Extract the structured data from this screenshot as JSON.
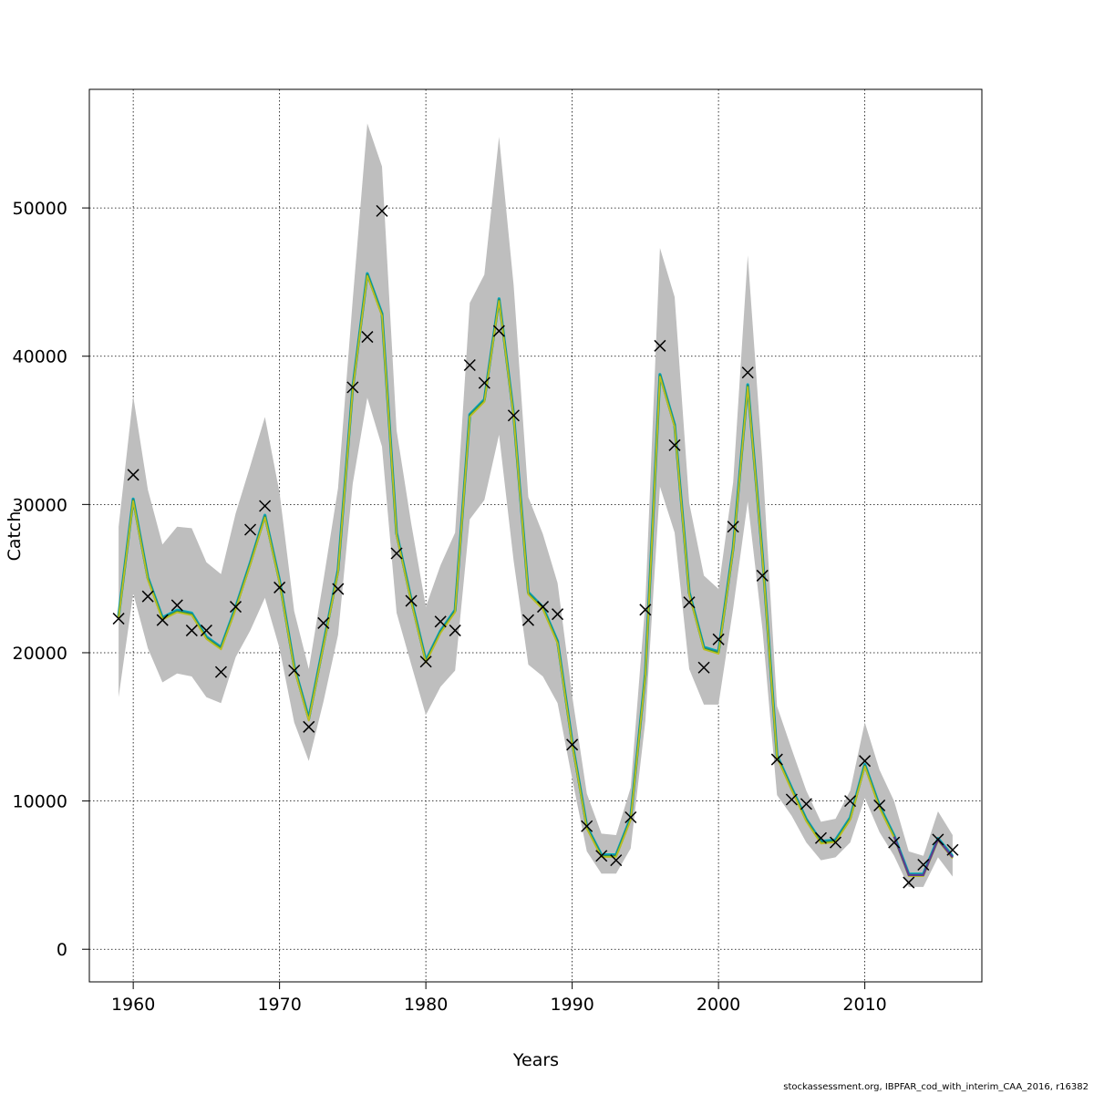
{
  "footer": {
    "source": "stockassessment.org, IBPFAR_cod_with_interim_CAA_2016, r16382"
  },
  "chart_data": {
    "type": "line",
    "xlabel": "Years",
    "ylabel": "Catch",
    "xlim": [
      1957,
      2018
    ],
    "ylim": [
      -2200,
      58000
    ],
    "x_ticks": [
      1960,
      1970,
      1980,
      1990,
      2000,
      2010
    ],
    "y_ticks": [
      0,
      10000,
      20000,
      30000,
      40000,
      50000
    ],
    "grid": true,
    "legend": "none",
    "colors": {
      "band": "#bebebe",
      "series": [
        "#00b3b3",
        "#1f78b4",
        "#2ca02c",
        "#bcbd22",
        "#5c3d8f",
        "#000000"
      ],
      "observed_marker": "#000000"
    },
    "x": [
      1959,
      1960,
      1961,
      1962,
      1963,
      1964,
      1965,
      1966,
      1967,
      1968,
      1969,
      1970,
      1971,
      1972,
      1973,
      1974,
      1975,
      1976,
      1977,
      1978,
      1979,
      1980,
      1981,
      1982,
      1983,
      1984,
      1985,
      1986,
      1987,
      1988,
      1989,
      1990,
      1991,
      1992,
      1993,
      1994,
      1995,
      1996,
      1997,
      1998,
      1999,
      2000,
      2001,
      2002,
      2003,
      2004,
      2005,
      2006,
      2007,
      2008,
      2009,
      2010,
      2011,
      2012,
      2013,
      2014,
      2015,
      2016
    ],
    "band_upper": [
      28500,
      37300,
      31000,
      27300,
      28500,
      28400,
      26100,
      25300,
      29400,
      32600,
      35900,
      30800,
      22800,
      18900,
      24900,
      31100,
      43800,
      55700,
      52800,
      35000,
      28700,
      23100,
      25900,
      28100,
      43600,
      45500,
      54800,
      44800,
      30500,
      28000,
      24700,
      17100,
      10500,
      7800,
      7700,
      10900,
      23400,
      47300,
      44000,
      30100,
      25200,
      24300,
      31500,
      46800,
      32900,
      16400,
      13500,
      10700,
      8600,
      8800,
      10700,
      15300,
      12100,
      10000,
      6600,
      6300,
      9300,
      7700
    ],
    "band_lower": [
      17000,
      24000,
      20300,
      18000,
      18600,
      18400,
      17000,
      16600,
      19700,
      21500,
      23700,
      20300,
      15300,
      12700,
      16700,
      21200,
      31400,
      37200,
      33900,
      22700,
      19200,
      15800,
      17700,
      18800,
      29000,
      30300,
      34700,
      26200,
      19200,
      18400,
      16600,
      11500,
      6600,
      5100,
      5100,
      6800,
      15400,
      31200,
      28100,
      18900,
      16500,
      16500,
      23000,
      30200,
      21600,
      10400,
      9000,
      7200,
      6000,
      6200,
      7200,
      10200,
      7900,
      6300,
      4200,
      4200,
      6200,
      4900
    ],
    "series": [
      {
        "values": [
          22400,
          30300,
          25000,
          22300,
          22800,
          22600,
          21000,
          20300,
          23000,
          26000,
          29200,
          24800,
          19000,
          15500,
          20500,
          25500,
          37800,
          45500,
          42800,
          28000,
          23500,
          19400,
          21400,
          22800,
          36000,
          37000,
          43800,
          36000,
          24000,
          23000,
          20700,
          13900,
          8200,
          6300,
          6300,
          8800,
          18500,
          38700,
          35300,
          24000,
          20300,
          20000,
          27000,
          38000,
          26500,
          13000,
          10800,
          8700,
          7200,
          7300,
          8800,
          12400,
          9600,
          7600,
          5000,
          5000,
          7400,
          6200
        ]
      }
    ],
    "observed": [
      22300,
      32000,
      23800,
      22200,
      23200,
      21500,
      21500,
      18700,
      23100,
      28300,
      29900,
      24400,
      18800,
      15000,
      22000,
      24300,
      37900,
      41300,
      49800,
      26700,
      23500,
      19400,
      22100,
      21500,
      39400,
      38200,
      41700,
      36000,
      22200,
      23100,
      22600,
      13800,
      8300,
      6300,
      6000,
      8900,
      22900,
      40700,
      34000,
      23400,
      19000,
      20900,
      28500,
      38900,
      25200,
      12800,
      10100,
      9800,
      7500,
      7200,
      10000,
      12700,
      9700,
      7200,
      4500,
      5700,
      7400,
      6700
    ]
  }
}
